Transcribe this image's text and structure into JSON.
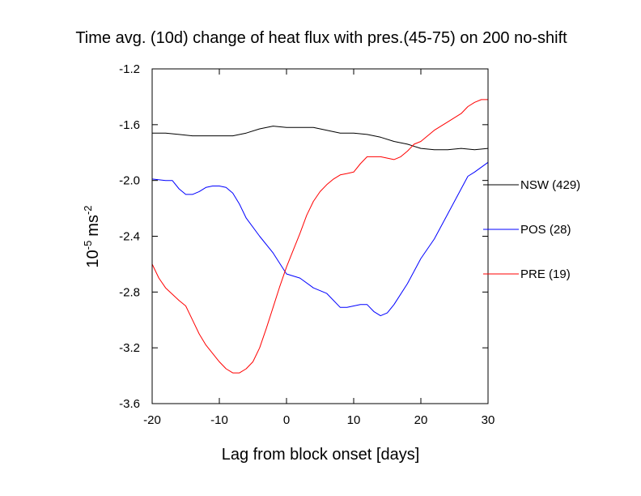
{
  "chart_data": {
    "type": "line",
    "title": "Time avg. (10d) change of heat flux with pres.(45-75) on 200 no-shift",
    "xlabel": "Lag from block onset [days]",
    "ylabel": {
      "base": "10",
      "exp": "-5",
      "unit": "ms",
      "unit_exp": "-2"
    },
    "xlim": [
      -20,
      30
    ],
    "ylim": [
      -3.6,
      -1.2
    ],
    "xticks": [
      -20,
      -10,
      0,
      10,
      20,
      30
    ],
    "xtick_labels": [
      "-20",
      "-10",
      "0",
      "10",
      "20",
      "30"
    ],
    "yticks": [
      -1.2,
      -1.6,
      -2.0,
      -2.4,
      -2.8,
      -3.2,
      -3.6
    ],
    "ytick_labels": [
      "-1.2",
      "-1.6",
      "-2.0",
      "-2.4",
      "-2.8",
      "-3.2",
      "-3.6"
    ],
    "grid": false,
    "legend_position": "right",
    "series": [
      {
        "name": "NSW (429)",
        "color": "#000000",
        "x": [
          -20,
          -18,
          -16,
          -14,
          -12,
          -10,
          -8,
          -6,
          -4,
          -2,
          0,
          2,
          4,
          6,
          8,
          10,
          12,
          14,
          16,
          18,
          20,
          22,
          24,
          26,
          28,
          30
        ],
        "y": [
          -1.66,
          -1.66,
          -1.67,
          -1.68,
          -1.68,
          -1.68,
          -1.68,
          -1.66,
          -1.63,
          -1.61,
          -1.62,
          -1.62,
          -1.62,
          -1.64,
          -1.66,
          -1.66,
          -1.67,
          -1.69,
          -1.72,
          -1.74,
          -1.77,
          -1.78,
          -1.78,
          -1.77,
          -1.78,
          -1.77
        ]
      },
      {
        "name": "POS (28)",
        "color": "#0000ff",
        "x": [
          -20,
          -18,
          -17,
          -16,
          -15,
          -14,
          -13,
          -12,
          -11,
          -10,
          -9,
          -8,
          -7,
          -6,
          -4,
          -2,
          0,
          2,
          4,
          6,
          8,
          9,
          10,
          11,
          12,
          13,
          14,
          15,
          16,
          18,
          20,
          22,
          24,
          26,
          27,
          28,
          30
        ],
        "y": [
          -1.99,
          -2.0,
          -2.0,
          -2.06,
          -2.1,
          -2.1,
          -2.08,
          -2.05,
          -2.04,
          -2.04,
          -2.05,
          -2.09,
          -2.17,
          -2.27,
          -2.4,
          -2.52,
          -2.67,
          -2.7,
          -2.77,
          -2.81,
          -2.91,
          -2.91,
          -2.9,
          -2.89,
          -2.89,
          -2.94,
          -2.97,
          -2.95,
          -2.89,
          -2.74,
          -2.56,
          -2.42,
          -2.24,
          -2.06,
          -1.97,
          -1.94,
          -1.87
        ]
      },
      {
        "name": "PRE (19)",
        "color": "#ff0000",
        "x": [
          -20,
          -19,
          -18,
          -16,
          -15,
          -14,
          -13,
          -12,
          -10,
          -9,
          -8,
          -7,
          -6,
          -5,
          -4,
          -3,
          -2,
          -1,
          0,
          1,
          2,
          3,
          4,
          5,
          6,
          7,
          8,
          9,
          10,
          11,
          12,
          13,
          14,
          15,
          16,
          17,
          18,
          19,
          20,
          22,
          24,
          26,
          27,
          28,
          29,
          30
        ],
        "y": [
          -2.6,
          -2.7,
          -2.77,
          -2.86,
          -2.9,
          -3.0,
          -3.1,
          -3.18,
          -3.3,
          -3.35,
          -3.38,
          -3.38,
          -3.35,
          -3.3,
          -3.2,
          -3.06,
          -2.91,
          -2.76,
          -2.62,
          -2.5,
          -2.38,
          -2.25,
          -2.15,
          -2.08,
          -2.03,
          -1.99,
          -1.96,
          -1.95,
          -1.94,
          -1.88,
          -1.83,
          -1.83,
          -1.83,
          -1.84,
          -1.85,
          -1.83,
          -1.79,
          -1.74,
          -1.72,
          -1.64,
          -1.58,
          -1.52,
          -1.47,
          -1.44,
          -1.42,
          -1.42
        ]
      }
    ]
  }
}
